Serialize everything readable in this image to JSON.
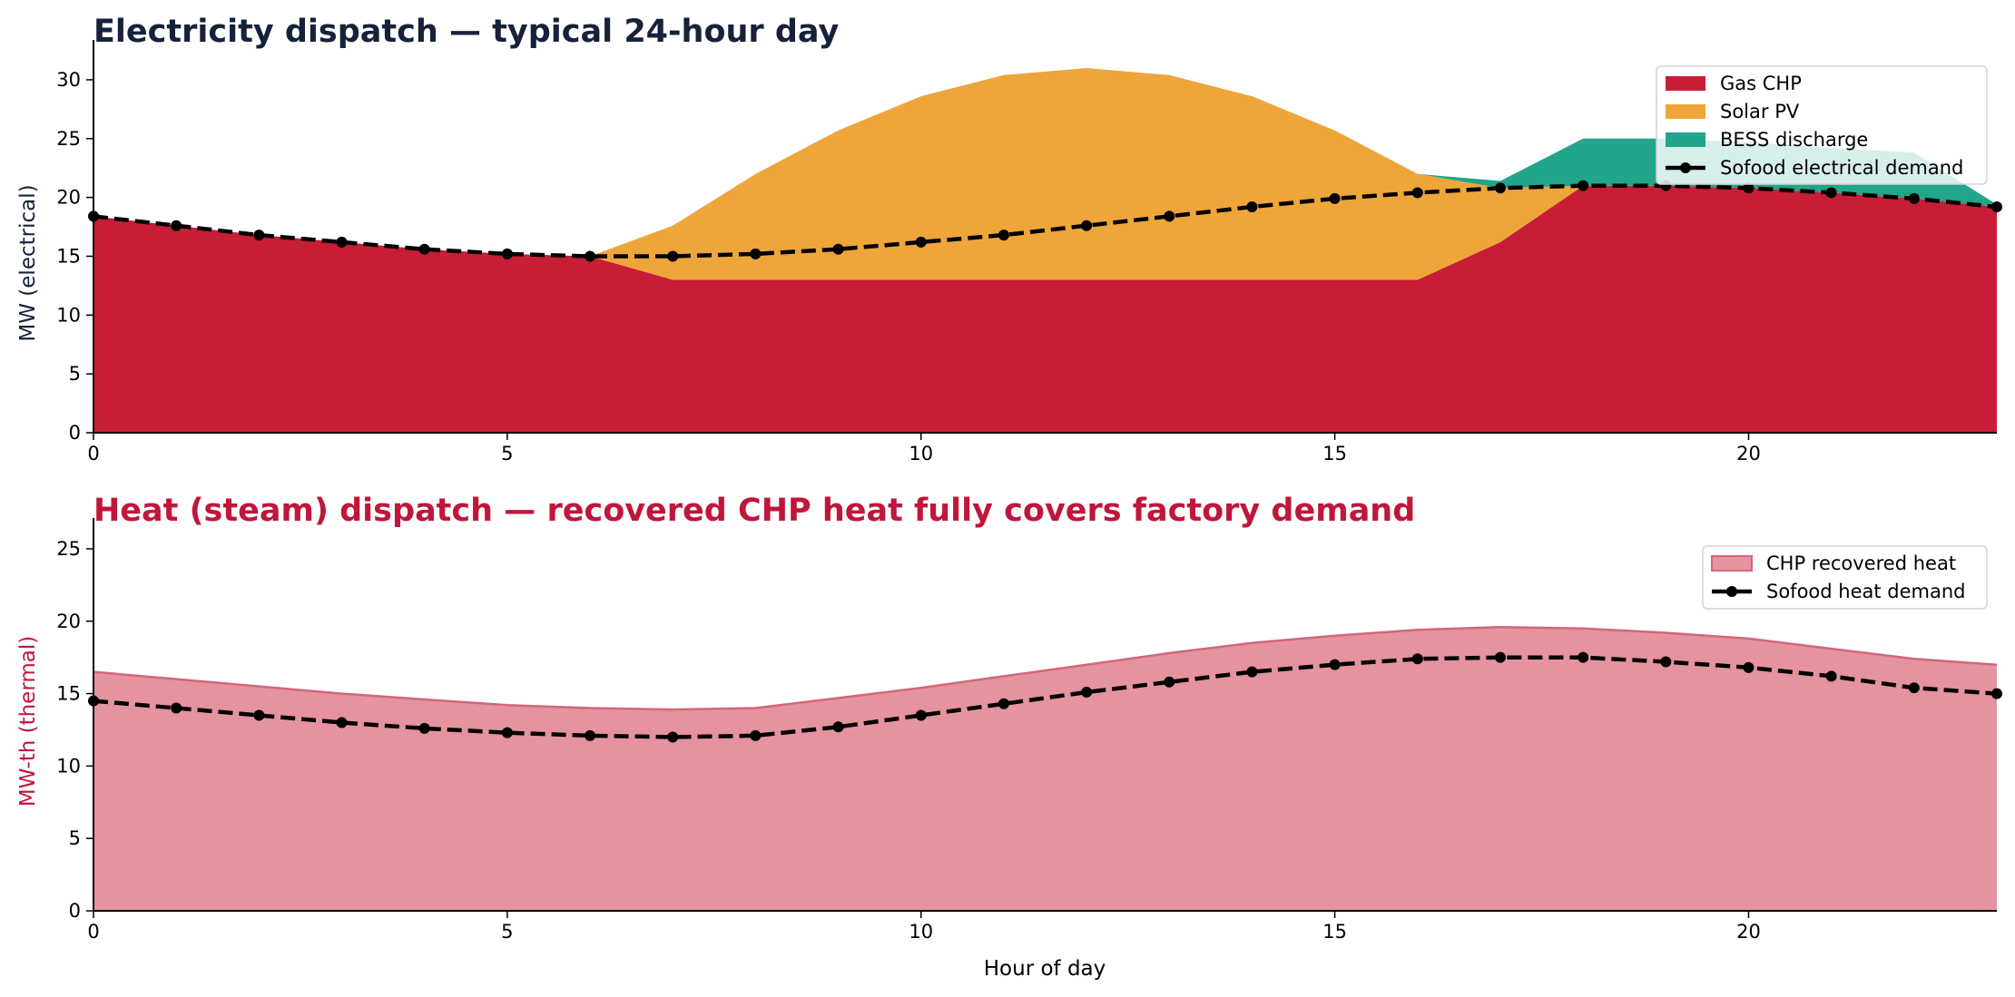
{
  "chart_data": [
    {
      "type": "area",
      "title": "Electricity dispatch — typical 24-hour day",
      "title_color": "#16213a",
      "xlabel": "",
      "ylabel": "MW (electrical)",
      "ylabel_color": "#16213a",
      "xlim": [
        0,
        23
      ],
      "ylim": [
        0,
        32
      ],
      "xticks": [
        0,
        5,
        10,
        15,
        20
      ],
      "yticks": [
        0,
        5,
        10,
        15,
        20,
        25,
        30
      ],
      "stacked": true,
      "legend_position": "top-right",
      "x": [
        0,
        1,
        2,
        3,
        4,
        5,
        6,
        7,
        8,
        9,
        10,
        11,
        12,
        13,
        14,
        15,
        16,
        17,
        18,
        19,
        20,
        21,
        22,
        23
      ],
      "series": [
        {
          "name": "Gas CHP",
          "kind": "area",
          "color": "#c81d37",
          "values": [
            18.4,
            17.6,
            16.8,
            16.2,
            15.6,
            15.2,
            15.0,
            13.0,
            13.0,
            13.0,
            13.0,
            13.0,
            13.0,
            13.0,
            13.0,
            13.0,
            13.0,
            16.2,
            21.0,
            21.0,
            20.8,
            20.4,
            19.9,
            19.2
          ]
        },
        {
          "name": "Solar PV",
          "kind": "area",
          "color": "#eea63a",
          "values": [
            0,
            0,
            0,
            0,
            0,
            0,
            0,
            4.6,
            9.0,
            12.7,
            15.6,
            17.4,
            18.0,
            17.4,
            15.6,
            12.7,
            9.0,
            4.6,
            0,
            0,
            0,
            0,
            0,
            0
          ]
        },
        {
          "name": "BESS discharge",
          "kind": "area",
          "color": "#22a58a",
          "values": [
            0,
            0,
            0,
            0,
            0,
            0,
            0,
            0,
            0,
            0,
            0,
            0,
            0,
            0,
            0,
            0,
            0,
            0.6,
            4.0,
            4.0,
            3.9,
            3.8,
            3.9,
            0.2
          ]
        },
        {
          "name": "Sofood electrical demand",
          "kind": "line",
          "color": "#000000",
          "values": [
            18.4,
            17.6,
            16.8,
            16.2,
            15.6,
            15.2,
            15.0,
            15.0,
            15.2,
            15.6,
            16.2,
            16.8,
            17.6,
            18.4,
            19.2,
            19.9,
            20.4,
            20.8,
            21.0,
            21.0,
            20.8,
            20.4,
            19.9,
            19.2
          ]
        }
      ]
    },
    {
      "type": "area",
      "title": "Heat (steam) dispatch — recovered CHP heat fully covers factory demand",
      "title_color": "#c0163a",
      "xlabel": "Hour of day",
      "ylabel": "MW-th (thermal)",
      "ylabel_color": "#c0163a",
      "xlim": [
        0,
        23
      ],
      "ylim": [
        0,
        26
      ],
      "xticks": [
        0,
        5,
        10,
        15,
        20
      ],
      "yticks": [
        0,
        5,
        10,
        15,
        20,
        25
      ],
      "stacked": false,
      "legend_position": "top-right",
      "x": [
        0,
        1,
        2,
        3,
        4,
        5,
        6,
        7,
        8,
        9,
        10,
        11,
        12,
        13,
        14,
        15,
        16,
        17,
        18,
        19,
        20,
        21,
        22,
        23
      ],
      "series": [
        {
          "name": "CHP recovered heat",
          "kind": "area",
          "color": "#e5939e",
          "edge_color": "#d2677a",
          "values": [
            16.5,
            16.0,
            15.5,
            15.0,
            14.6,
            14.2,
            14.0,
            13.9,
            14.0,
            14.7,
            15.4,
            16.2,
            17.0,
            17.8,
            18.5,
            19.0,
            19.4,
            19.6,
            19.5,
            19.2,
            18.8,
            18.1,
            17.4,
            17.0
          ]
        },
        {
          "name": "Sofood heat demand",
          "kind": "line",
          "color": "#000000",
          "values": [
            14.5,
            14.0,
            13.5,
            13.0,
            12.6,
            12.3,
            12.1,
            12.0,
            12.1,
            12.7,
            13.5,
            14.3,
            15.1,
            15.8,
            16.5,
            17.0,
            17.4,
            17.5,
            17.5,
            17.2,
            16.8,
            16.2,
            15.4,
            15.0
          ]
        }
      ]
    }
  ]
}
